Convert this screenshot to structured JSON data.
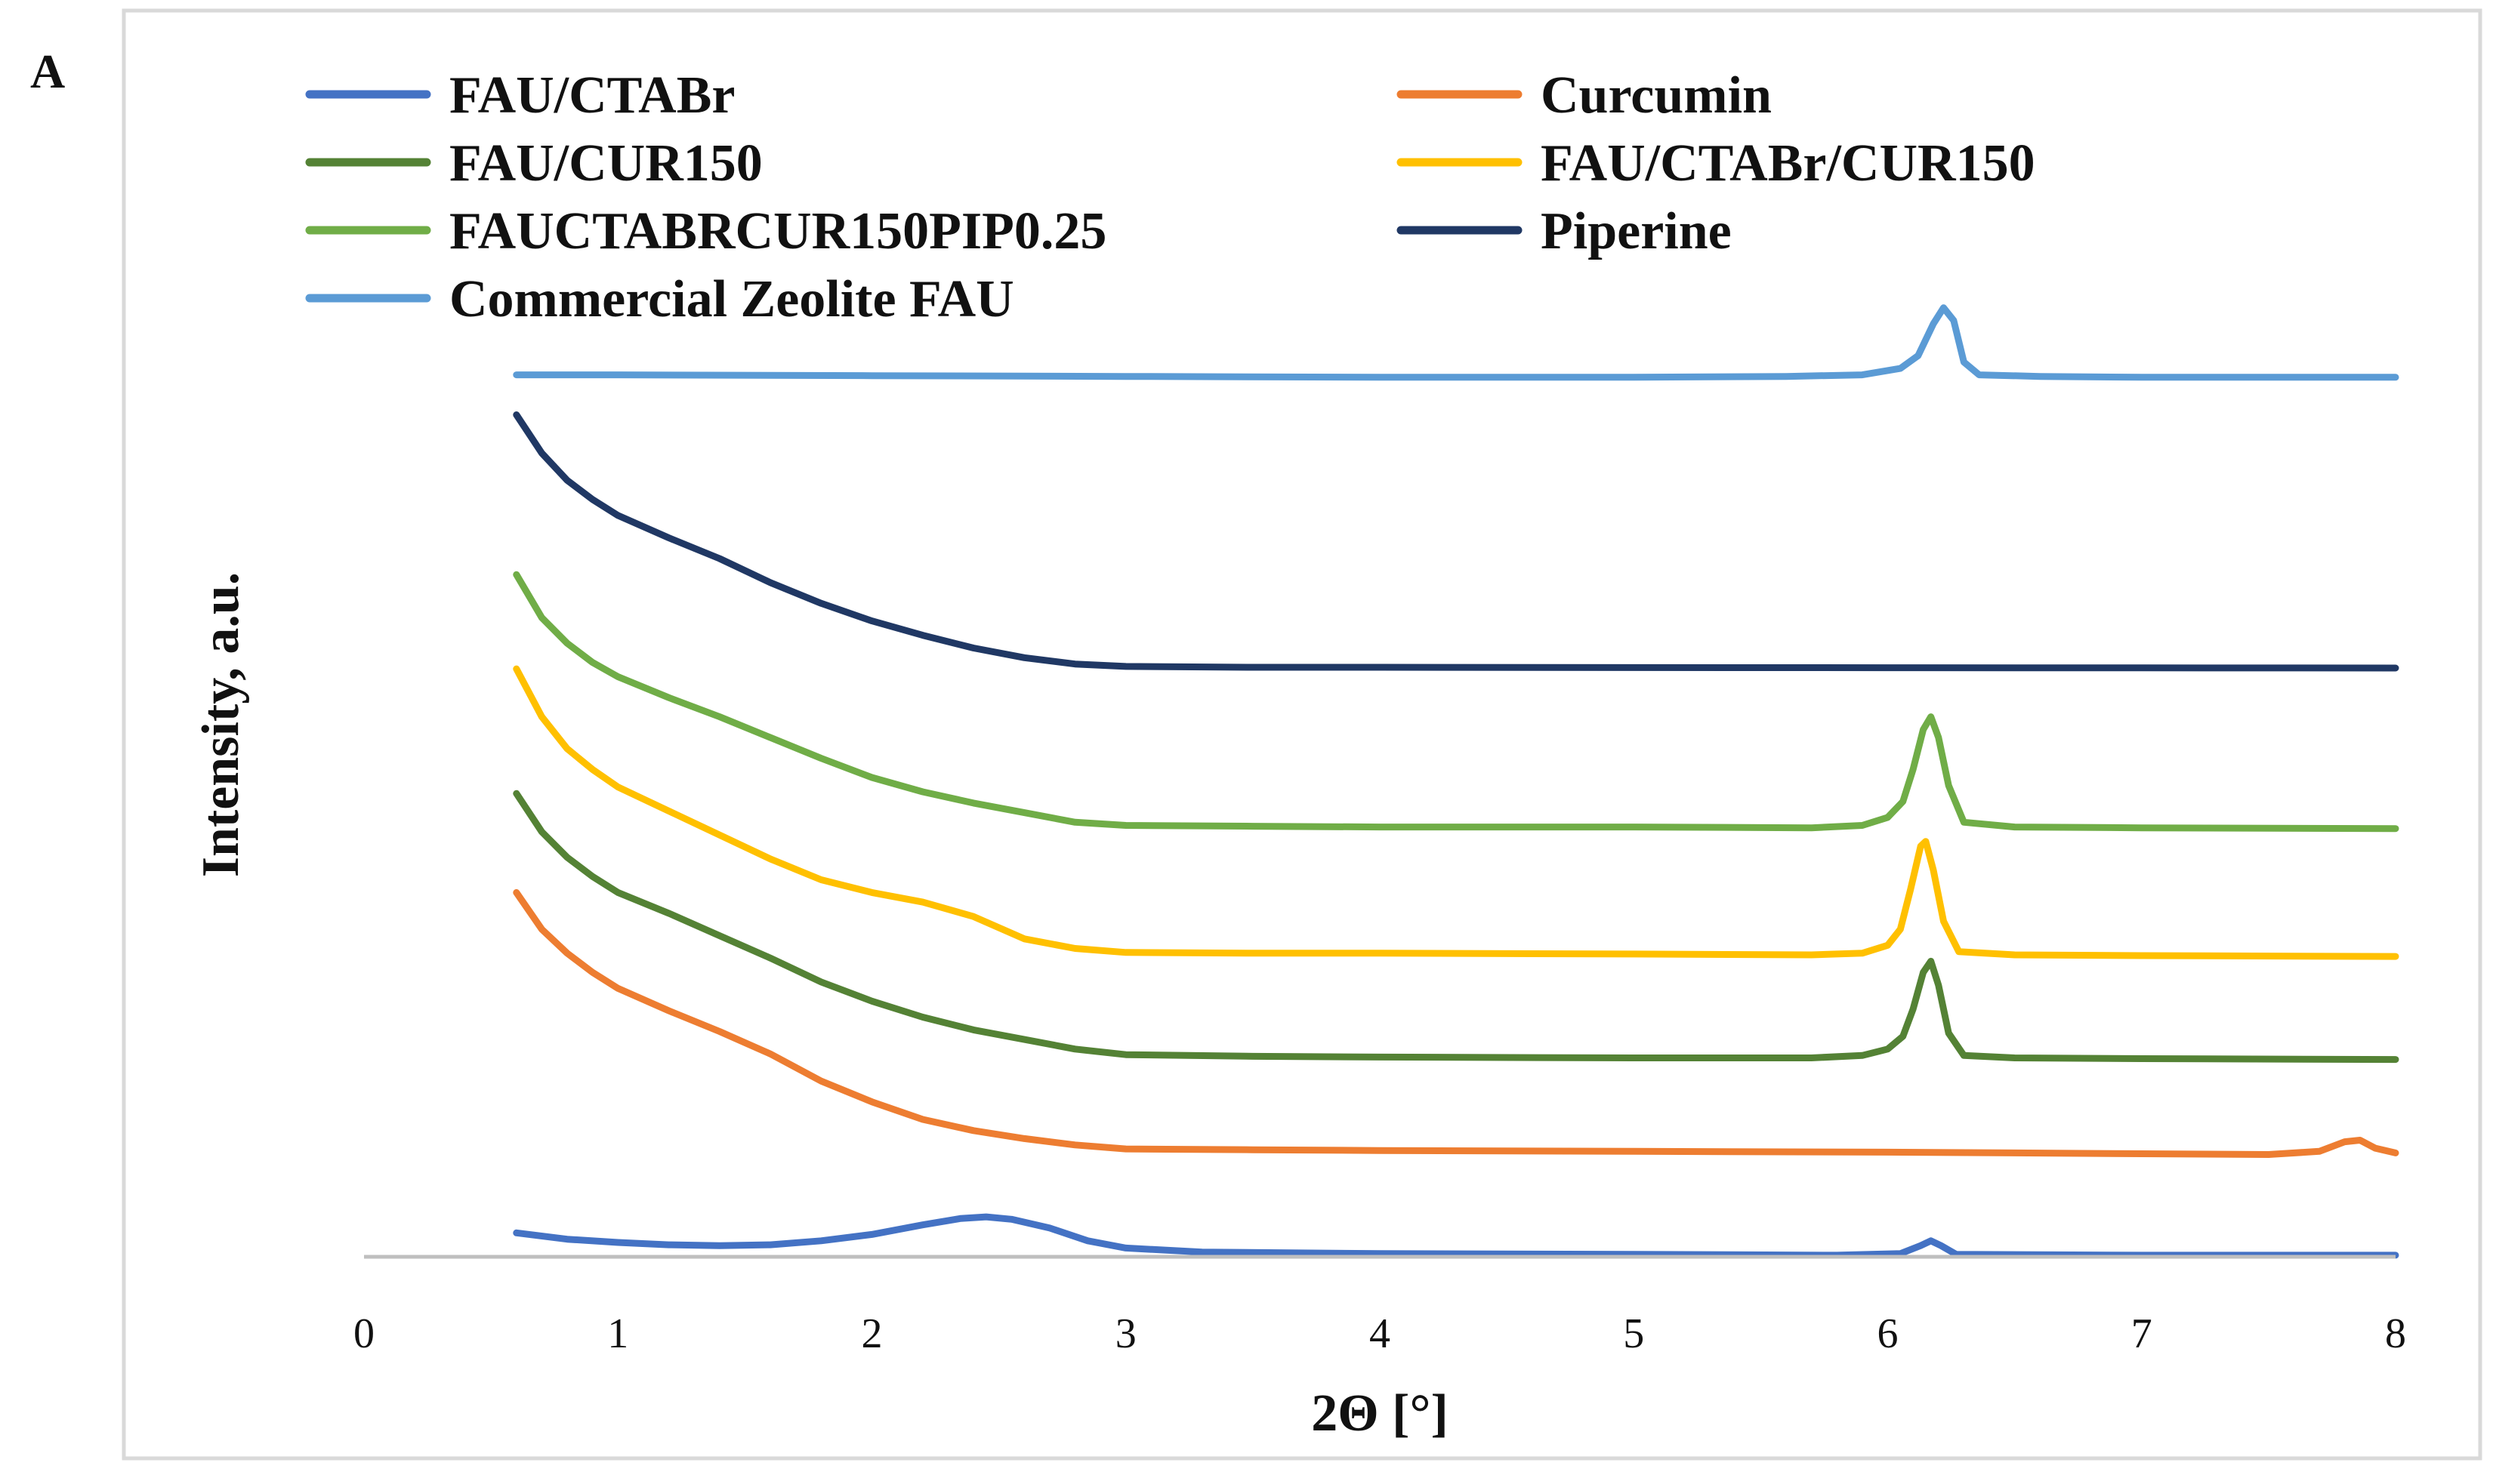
{
  "panel_label": "A",
  "chart_data": {
    "type": "line",
    "title": "",
    "xlabel": "2Θ [°]",
    "ylabel": "Intensity, a.u.",
    "xlim": [
      0,
      8
    ],
    "ylim": [
      0,
      6
    ],
    "xticks": [
      "0",
      "1",
      "2",
      "3",
      "4",
      "5",
      "6",
      "7",
      "8"
    ],
    "yticks_visible": false,
    "grid": false,
    "legend_position": "top",
    "series": [
      {
        "name": "FAU/CTABr",
        "color": "#4472C4",
        "points": [
          [
            0.6,
            0.15
          ],
          [
            0.8,
            0.11
          ],
          [
            1.0,
            0.09
          ],
          [
            1.2,
            0.075
          ],
          [
            1.4,
            0.07
          ],
          [
            1.6,
            0.075
          ],
          [
            1.8,
            0.1
          ],
          [
            2.0,
            0.14
          ],
          [
            2.2,
            0.2
          ],
          [
            2.35,
            0.24
          ],
          [
            2.45,
            0.25
          ],
          [
            2.55,
            0.235
          ],
          [
            2.7,
            0.18
          ],
          [
            2.85,
            0.1
          ],
          [
            3.0,
            0.055
          ],
          [
            3.3,
            0.03
          ],
          [
            4.0,
            0.02
          ],
          [
            5.0,
            0.015
          ],
          [
            5.8,
            0.01
          ],
          [
            6.05,
            0.02
          ],
          [
            6.13,
            0.07
          ],
          [
            6.17,
            0.1
          ],
          [
            6.21,
            0.07
          ],
          [
            6.27,
            0.015
          ],
          [
            7.0,
            0.01
          ],
          [
            8.0,
            0.01
          ]
        ]
      },
      {
        "name": "Curcumin",
        "color": "#ED7D31",
        "points": [
          [
            0.6,
            2.28
          ],
          [
            0.7,
            2.05
          ],
          [
            0.8,
            1.9
          ],
          [
            0.9,
            1.78
          ],
          [
            1.0,
            1.68
          ],
          [
            1.2,
            1.54
          ],
          [
            1.4,
            1.41
          ],
          [
            1.6,
            1.27
          ],
          [
            1.8,
            1.1
          ],
          [
            2.0,
            0.97
          ],
          [
            2.2,
            0.86
          ],
          [
            2.4,
            0.79
          ],
          [
            2.6,
            0.74
          ],
          [
            2.8,
            0.7
          ],
          [
            3.0,
            0.675
          ],
          [
            3.5,
            0.67
          ],
          [
            4.0,
            0.665
          ],
          [
            5.0,
            0.66
          ],
          [
            6.0,
            0.655
          ],
          [
            6.5,
            0.65
          ],
          [
            7.0,
            0.645
          ],
          [
            7.5,
            0.64
          ],
          [
            7.7,
            0.66
          ],
          [
            7.8,
            0.72
          ],
          [
            7.86,
            0.73
          ],
          [
            7.92,
            0.68
          ],
          [
            8.0,
            0.65
          ]
        ]
      },
      {
        "name": "FAU/CUR150",
        "color": "#548235",
        "points": [
          [
            0.6,
            2.9
          ],
          [
            0.7,
            2.66
          ],
          [
            0.8,
            2.5
          ],
          [
            0.9,
            2.38
          ],
          [
            1.0,
            2.28
          ],
          [
            1.2,
            2.15
          ],
          [
            1.4,
            2.01
          ],
          [
            1.6,
            1.87
          ],
          [
            1.8,
            1.72
          ],
          [
            2.0,
            1.6
          ],
          [
            2.2,
            1.5
          ],
          [
            2.4,
            1.42
          ],
          [
            2.6,
            1.36
          ],
          [
            2.8,
            1.3
          ],
          [
            3.0,
            1.265
          ],
          [
            3.5,
            1.255
          ],
          [
            4.0,
            1.25
          ],
          [
            5.0,
            1.245
          ],
          [
            5.7,
            1.245
          ],
          [
            5.9,
            1.26
          ],
          [
            6.0,
            1.3
          ],
          [
            6.06,
            1.38
          ],
          [
            6.1,
            1.55
          ],
          [
            6.14,
            1.78
          ],
          [
            6.17,
            1.85
          ],
          [
            6.2,
            1.7
          ],
          [
            6.24,
            1.4
          ],
          [
            6.3,
            1.26
          ],
          [
            6.5,
            1.245
          ],
          [
            7.0,
            1.24
          ],
          [
            8.0,
            1.235
          ]
        ]
      },
      {
        "name": "FAU/CTABr/CUR150",
        "color": "#FFC000",
        "points": [
          [
            0.6,
            3.68
          ],
          [
            0.7,
            3.38
          ],
          [
            0.8,
            3.18
          ],
          [
            0.9,
            3.05
          ],
          [
            1.0,
            2.94
          ],
          [
            1.2,
            2.79
          ],
          [
            1.4,
            2.64
          ],
          [
            1.6,
            2.49
          ],
          [
            1.8,
            2.36
          ],
          [
            2.0,
            2.28
          ],
          [
            2.2,
            2.22
          ],
          [
            2.4,
            2.13
          ],
          [
            2.6,
            1.99
          ],
          [
            2.8,
            1.93
          ],
          [
            3.0,
            1.905
          ],
          [
            3.5,
            1.9
          ],
          [
            4.0,
            1.9
          ],
          [
            5.0,
            1.895
          ],
          [
            5.7,
            1.89
          ],
          [
            5.9,
            1.9
          ],
          [
            6.0,
            1.95
          ],
          [
            6.05,
            2.05
          ],
          [
            6.09,
            2.3
          ],
          [
            6.13,
            2.57
          ],
          [
            6.15,
            2.6
          ],
          [
            6.18,
            2.42
          ],
          [
            6.22,
            2.1
          ],
          [
            6.28,
            1.91
          ],
          [
            6.5,
            1.89
          ],
          [
            7.0,
            1.885
          ],
          [
            8.0,
            1.88
          ]
        ]
      },
      {
        "name": "FAUCTABRCUR150PIP0.25",
        "color": "#70AD47",
        "points": [
          [
            0.6,
            4.27
          ],
          [
            0.7,
            4.0
          ],
          [
            0.8,
            3.84
          ],
          [
            0.9,
            3.72
          ],
          [
            1.0,
            3.63
          ],
          [
            1.2,
            3.5
          ],
          [
            1.4,
            3.38
          ],
          [
            1.6,
            3.25
          ],
          [
            1.8,
            3.12
          ],
          [
            2.0,
            3.0
          ],
          [
            2.2,
            2.91
          ],
          [
            2.4,
            2.84
          ],
          [
            2.6,
            2.78
          ],
          [
            2.8,
            2.72
          ],
          [
            3.0,
            2.7
          ],
          [
            3.5,
            2.695
          ],
          [
            4.0,
            2.69
          ],
          [
            5.0,
            2.69
          ],
          [
            5.7,
            2.685
          ],
          [
            5.9,
            2.7
          ],
          [
            6.0,
            2.75
          ],
          [
            6.06,
            2.85
          ],
          [
            6.1,
            3.05
          ],
          [
            6.14,
            3.3
          ],
          [
            6.17,
            3.38
          ],
          [
            6.2,
            3.25
          ],
          [
            6.24,
            2.95
          ],
          [
            6.3,
            2.72
          ],
          [
            6.5,
            2.69
          ],
          [
            7.0,
            2.685
          ],
          [
            8.0,
            2.68
          ]
        ]
      },
      {
        "name": "Piperine",
        "color": "#203864",
        "points": [
          [
            0.6,
            5.27
          ],
          [
            0.7,
            5.03
          ],
          [
            0.8,
            4.86
          ],
          [
            0.9,
            4.74
          ],
          [
            1.0,
            4.64
          ],
          [
            1.2,
            4.5
          ],
          [
            1.4,
            4.37
          ],
          [
            1.6,
            4.22
          ],
          [
            1.8,
            4.09
          ],
          [
            2.0,
            3.98
          ],
          [
            2.2,
            3.89
          ],
          [
            2.4,
            3.81
          ],
          [
            2.6,
            3.75
          ],
          [
            2.8,
            3.71
          ],
          [
            3.0,
            3.695
          ],
          [
            3.5,
            3.69
          ],
          [
            4.0,
            3.69
          ],
          [
            5.0,
            3.688
          ],
          [
            6.0,
            3.687
          ],
          [
            7.0,
            3.686
          ],
          [
            8.0,
            3.685
          ]
        ]
      },
      {
        "name": "Commercial Zeolite FAU",
        "color": "#5B9BD5",
        "points": [
          [
            0.6,
            5.52
          ],
          [
            1.0,
            5.52
          ],
          [
            2.0,
            5.515
          ],
          [
            3.0,
            5.51
          ],
          [
            4.0,
            5.505
          ],
          [
            5.0,
            5.505
          ],
          [
            5.6,
            5.51
          ],
          [
            5.9,
            5.52
          ],
          [
            6.05,
            5.56
          ],
          [
            6.12,
            5.64
          ],
          [
            6.18,
            5.84
          ],
          [
            6.22,
            5.94
          ],
          [
            6.26,
            5.86
          ],
          [
            6.3,
            5.6
          ],
          [
            6.36,
            5.52
          ],
          [
            6.6,
            5.51
          ],
          [
            7.0,
            5.505
          ],
          [
            8.0,
            5.505
          ]
        ]
      }
    ]
  }
}
